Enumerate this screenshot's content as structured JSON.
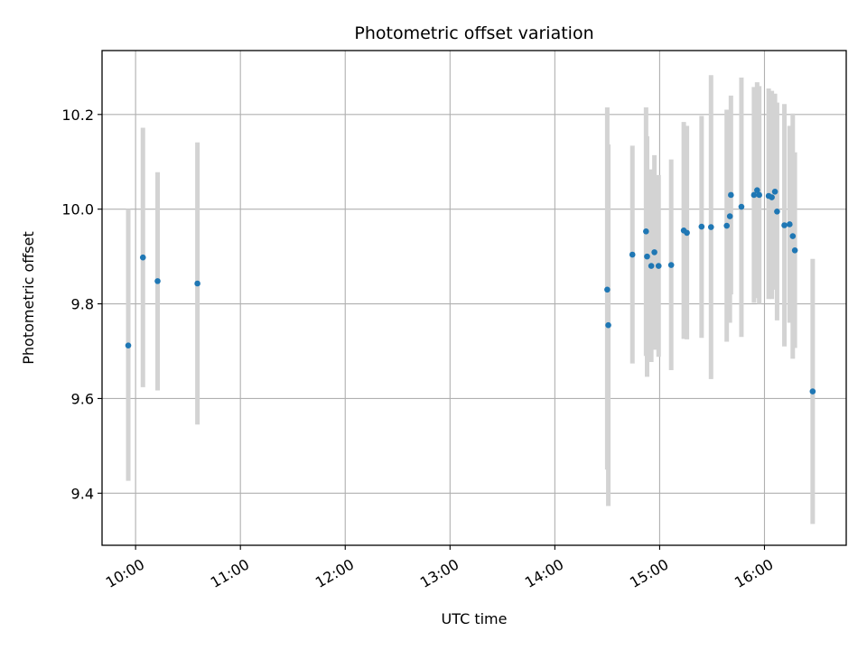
{
  "chart_data": {
    "type": "scatter",
    "title": "Photometric offset variation",
    "xlabel": "UTC time",
    "ylabel": "Photometric offset",
    "x_unit": "hours UTC",
    "xlim": [
      9.68,
      16.78
    ],
    "ylim": [
      9.29,
      10.335
    ],
    "grid": true,
    "x_ticks": [
      {
        "value": 10,
        "label": "10:00"
      },
      {
        "value": 11,
        "label": "11:00"
      },
      {
        "value": 12,
        "label": "12:00"
      },
      {
        "value": 13,
        "label": "13:00"
      },
      {
        "value": 14,
        "label": "14:00"
      },
      {
        "value": 15,
        "label": "15:00"
      },
      {
        "value": 16,
        "label": "16:00"
      }
    ],
    "y_ticks": [
      {
        "value": 9.4,
        "label": "9.4"
      },
      {
        "value": 9.6,
        "label": "9.6"
      },
      {
        "value": 9.8,
        "label": "9.8"
      },
      {
        "value": 10.0,
        "label": "10.0"
      },
      {
        "value": 10.2,
        "label": "10.2"
      }
    ],
    "colors": {
      "points": "#1f77b4",
      "errorbars": "#d3d3d3",
      "grid": "#b0b0b0"
    },
    "points": [
      {
        "x": 9.93,
        "y": 9.712,
        "lo": 9.426,
        "hi": 10.0
      },
      {
        "x": 10.07,
        "y": 9.898,
        "lo": 9.624,
        "hi": 10.172
      },
      {
        "x": 10.21,
        "y": 9.848,
        "lo": 9.617,
        "hi": 10.078
      },
      {
        "x": 10.59,
        "y": 9.843,
        "lo": 9.545,
        "hi": 10.141
      },
      {
        "x": 14.5,
        "y": 9.83,
        "lo": 9.45,
        "hi": 10.215
      },
      {
        "x": 14.51,
        "y": 9.755,
        "lo": 9.373,
        "hi": 10.137
      },
      {
        "x": 14.74,
        "y": 9.904,
        "lo": 9.674,
        "hi": 10.134
      },
      {
        "x": 14.87,
        "y": 9.953,
        "lo": 9.69,
        "hi": 10.215
      },
      {
        "x": 14.88,
        "y": 9.9,
        "lo": 9.646,
        "hi": 10.154
      },
      {
        "x": 14.92,
        "y": 9.88,
        "lo": 9.677,
        "hi": 10.084
      },
      {
        "x": 14.95,
        "y": 9.909,
        "lo": 9.703,
        "hi": 10.114
      },
      {
        "x": 14.99,
        "y": 9.88,
        "lo": 9.688,
        "hi": 10.072
      },
      {
        "x": 15.11,
        "y": 9.882,
        "lo": 9.66,
        "hi": 10.105
      },
      {
        "x": 15.23,
        "y": 9.955,
        "lo": 9.726,
        "hi": 10.184
      },
      {
        "x": 15.26,
        "y": 9.95,
        "lo": 9.725,
        "hi": 10.176
      },
      {
        "x": 15.4,
        "y": 9.963,
        "lo": 9.728,
        "hi": 10.197
      },
      {
        "x": 15.49,
        "y": 9.962,
        "lo": 9.641,
        "hi": 10.283
      },
      {
        "x": 15.64,
        "y": 9.965,
        "lo": 9.72,
        "hi": 10.21
      },
      {
        "x": 15.67,
        "y": 9.985,
        "lo": 9.76,
        "hi": 10.21
      },
      {
        "x": 15.68,
        "y": 10.03,
        "lo": 9.82,
        "hi": 10.24
      },
      {
        "x": 15.78,
        "y": 10.005,
        "lo": 9.73,
        "hi": 10.278
      },
      {
        "x": 15.9,
        "y": 10.03,
        "lo": 9.802,
        "hi": 10.258
      },
      {
        "x": 15.93,
        "y": 10.04,
        "lo": 9.812,
        "hi": 10.268
      },
      {
        "x": 15.95,
        "y": 10.03,
        "lo": 9.8,
        "hi": 10.26
      },
      {
        "x": 16.04,
        "y": 10.028,
        "lo": 9.81,
        "hi": 10.255
      },
      {
        "x": 16.07,
        "y": 10.025,
        "lo": 9.81,
        "hi": 10.25
      },
      {
        "x": 16.1,
        "y": 10.037,
        "lo": 9.83,
        "hi": 10.244
      },
      {
        "x": 16.12,
        "y": 9.995,
        "lo": 9.765,
        "hi": 10.225
      },
      {
        "x": 16.19,
        "y": 9.966,
        "lo": 9.71,
        "hi": 10.222
      },
      {
        "x": 16.24,
        "y": 9.968,
        "lo": 9.76,
        "hi": 10.176
      },
      {
        "x": 16.27,
        "y": 9.943,
        "lo": 9.684,
        "hi": 10.202
      },
      {
        "x": 16.29,
        "y": 9.913,
        "lo": 9.707,
        "hi": 10.12
      },
      {
        "x": 16.46,
        "y": 9.615,
        "lo": 9.335,
        "hi": 9.895
      }
    ]
  }
}
